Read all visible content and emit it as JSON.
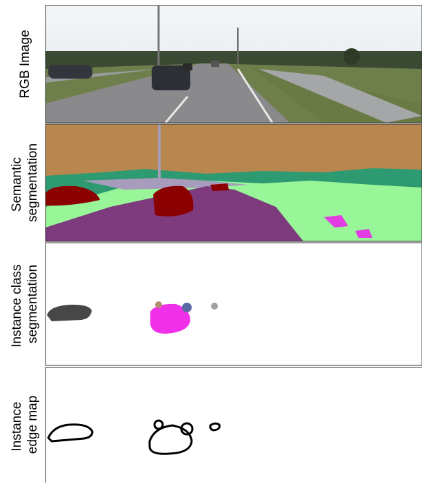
{
  "panels": [
    {
      "label_lines": [
        "RGB Image"
      ]
    },
    {
      "label_lines": [
        "Semantic",
        "segmentation"
      ]
    },
    {
      "label_lines": [
        "Instance class",
        "segmentation"
      ]
    },
    {
      "label_lines": [
        "Instance",
        "edge map"
      ]
    }
  ]
}
